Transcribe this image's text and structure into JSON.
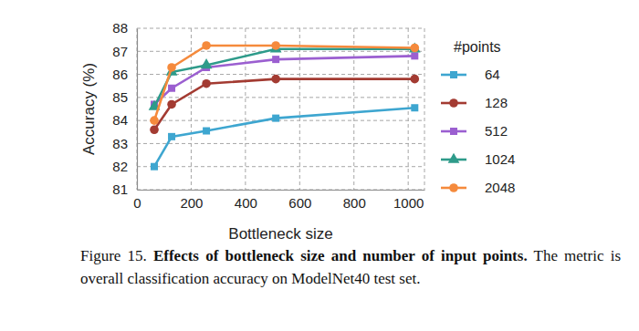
{
  "chart_data": {
    "type": "line",
    "x_label": "Bottleneck size",
    "y_label": "Accuracy (%)",
    "x": [
      64,
      128,
      256,
      512,
      1024
    ],
    "xlim": [
      0,
      1060
    ],
    "xticks": [
      0,
      200,
      400,
      600,
      800,
      1000
    ],
    "ylim": [
      81,
      88
    ],
    "yticks": [
      81,
      82,
      83,
      84,
      85,
      86,
      87,
      88
    ],
    "grid": true,
    "legend": "right",
    "legend_title": "#points",
    "series": [
      {
        "name": "64",
        "color": "#3ea6d0",
        "marker": "square",
        "values": [
          82.0,
          83.3,
          83.55,
          84.1,
          84.55
        ]
      },
      {
        "name": "128",
        "color": "#a33b32",
        "marker": "circle",
        "values": [
          83.6,
          84.7,
          85.6,
          85.8,
          85.8
        ]
      },
      {
        "name": "512",
        "color": "#9b5fd0",
        "marker": "square",
        "values": [
          84.7,
          85.4,
          86.3,
          86.65,
          86.8
        ]
      },
      {
        "name": "1024",
        "color": "#2e9b8a",
        "marker": "triangle",
        "values": [
          84.6,
          86.1,
          86.4,
          87.1,
          87.1
        ]
      },
      {
        "name": "2048",
        "color": "#f58a3c",
        "marker": "circle",
        "values": [
          84.0,
          86.3,
          87.25,
          87.25,
          87.15
        ]
      }
    ]
  },
  "caption": {
    "label": "Figure 15.",
    "title": "Effects of bottleneck size and number of input points.",
    "text": "The metric is overall classification accuracy on ModelNet40 test set."
  }
}
